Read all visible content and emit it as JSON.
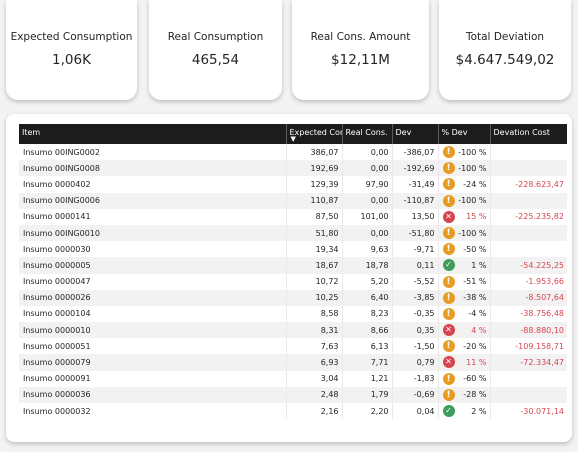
{
  "kpis": [
    {
      "label": "Expected Consumption",
      "value": "1,06K"
    },
    {
      "label": "Real Consumption",
      "value": "465,54"
    },
    {
      "label": "Real Cons. Amount",
      "value": "$12,11M"
    },
    {
      "label": "Total Deviation",
      "value": "$4.647.549,02"
    }
  ],
  "table": {
    "headers": {
      "item": "Item",
      "expected": "Expected Cons.",
      "real": "Real Cons.",
      "dev": "Dev",
      "pct_dev": "% Dev",
      "dev_cost": "Devation Cost"
    },
    "status_colors": {
      "warning": "#e89b22",
      "negative": "#d64550",
      "positive": "#3f9c5c"
    },
    "rows": [
      {
        "item": "Insumo 00ING0002",
        "expected": "386,07",
        "real": "0,00",
        "dev": "-386,07",
        "status": "warning-icon",
        "pct": "-100 %",
        "pct_red": false,
        "cost": ""
      },
      {
        "item": "Insumo 00ING0008",
        "expected": "192,69",
        "real": "0,00",
        "dev": "-192,69",
        "status": "warning-icon",
        "pct": "-100 %",
        "pct_red": false,
        "cost": ""
      },
      {
        "item": "Insumo 0000402",
        "expected": "129,39",
        "real": "97,90",
        "dev": "-31,49",
        "status": "warning-icon",
        "pct": "-24 %",
        "pct_red": false,
        "cost": "-228.623,47"
      },
      {
        "item": "Insumo 00ING0006",
        "expected": "110,87",
        "real": "0,00",
        "dev": "-110,87",
        "status": "warning-icon",
        "pct": "-100 %",
        "pct_red": false,
        "cost": ""
      },
      {
        "item": "Insumo 0000141",
        "expected": "87,50",
        "real": "101,00",
        "dev": "13,50",
        "status": "error-icon",
        "pct": "15 %",
        "pct_red": true,
        "cost": "-225.235,82"
      },
      {
        "item": "Insumo 00ING0010",
        "expected": "51,80",
        "real": "0,00",
        "dev": "-51,80",
        "status": "warning-icon",
        "pct": "-100 %",
        "pct_red": false,
        "cost": ""
      },
      {
        "item": "Insumo 0000030",
        "expected": "19,34",
        "real": "9,63",
        "dev": "-9,71",
        "status": "warning-icon",
        "pct": "-50 %",
        "pct_red": false,
        "cost": ""
      },
      {
        "item": "Insumo 0000005",
        "expected": "18,67",
        "real": "18,78",
        "dev": "0,11",
        "status": "check-icon",
        "pct": "1 %",
        "pct_red": false,
        "cost": "-54.225,25"
      },
      {
        "item": "Insumo 0000047",
        "expected": "10,72",
        "real": "5,20",
        "dev": "-5,52",
        "status": "warning-icon",
        "pct": "-51 %",
        "pct_red": false,
        "cost": "-1.953,66"
      },
      {
        "item": "Insumo 0000026",
        "expected": "10,25",
        "real": "6,40",
        "dev": "-3,85",
        "status": "warning-icon",
        "pct": "-38 %",
        "pct_red": false,
        "cost": "-8.507,64"
      },
      {
        "item": "Insumo 0000104",
        "expected": "8,58",
        "real": "8,23",
        "dev": "-0,35",
        "status": "warning-icon",
        "pct": "-4 %",
        "pct_red": false,
        "cost": "-38.756,48"
      },
      {
        "item": "Insumo 0000010",
        "expected": "8,31",
        "real": "8,66",
        "dev": "0,35",
        "status": "error-icon",
        "pct": "4 %",
        "pct_red": true,
        "cost": "-88.880,10"
      },
      {
        "item": "Insumo 0000051",
        "expected": "7,63",
        "real": "6,13",
        "dev": "-1,50",
        "status": "warning-icon",
        "pct": "-20 %",
        "pct_red": false,
        "cost": "-109.158,71"
      },
      {
        "item": "Insumo 0000079",
        "expected": "6,93",
        "real": "7,71",
        "dev": "0,79",
        "status": "error-icon",
        "pct": "11 %",
        "pct_red": true,
        "cost": "-72.334,47"
      },
      {
        "item": "Insumo 0000091",
        "expected": "3,04",
        "real": "1,21",
        "dev": "-1,83",
        "status": "warning-icon",
        "pct": "-60 %",
        "pct_red": false,
        "cost": ""
      },
      {
        "item": "Insumo 0000036",
        "expected": "2,48",
        "real": "1,79",
        "dev": "-0,69",
        "status": "warning-icon",
        "pct": "-28 %",
        "pct_red": false,
        "cost": ""
      },
      {
        "item": "Insumo 0000032",
        "expected": "2,16",
        "real": "2,20",
        "dev": "0,04",
        "status": "check-icon",
        "pct": "2 %",
        "pct_red": false,
        "cost": "-30.071,14"
      }
    ]
  }
}
